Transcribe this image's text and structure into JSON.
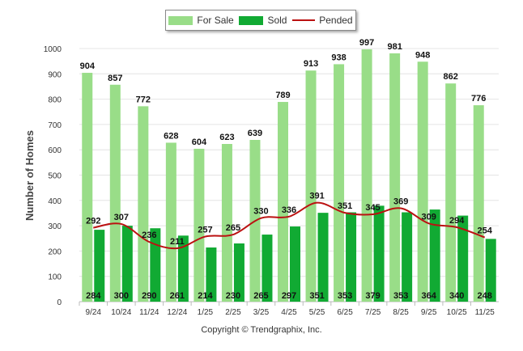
{
  "chart_data": {
    "type": "bar",
    "title": "",
    "xlabel": "",
    "ylabel": "Number of Homes",
    "ylim": [
      0,
      1000
    ],
    "yticks": [
      0,
      100,
      200,
      300,
      400,
      500,
      600,
      700,
      800,
      900,
      1000
    ],
    "categories": [
      "9/24",
      "10/24",
      "11/24",
      "12/24",
      "1/25",
      "2/25",
      "3/25",
      "4/25",
      "5/25",
      "6/25",
      "7/25",
      "8/25",
      "9/25",
      "10/25",
      "11/25"
    ],
    "series": [
      {
        "name": "For Sale",
        "type": "bar",
        "color": "#99dd88",
        "values": [
          904,
          857,
          772,
          628,
          604,
          623,
          639,
          789,
          913,
          938,
          997,
          981,
          948,
          862,
          776
        ]
      },
      {
        "name": "Sold",
        "type": "bar",
        "color": "#11aa33",
        "values": [
          284,
          300,
          290,
          261,
          214,
          230,
          265,
          297,
          351,
          353,
          379,
          353,
          364,
          340,
          248
        ]
      },
      {
        "name": "Pended",
        "type": "line",
        "color": "#bb1111",
        "values": [
          292,
          307,
          236,
          211,
          257,
          265,
          330,
          336,
          391,
          351,
          345,
          369,
          309,
          294,
          254
        ]
      }
    ],
    "legend_position": "top-center"
  },
  "legend": {
    "for_sale": "For Sale",
    "sold": "Sold",
    "pended": "Pended"
  },
  "credit": "Copyright © Trendgraphix, Inc."
}
